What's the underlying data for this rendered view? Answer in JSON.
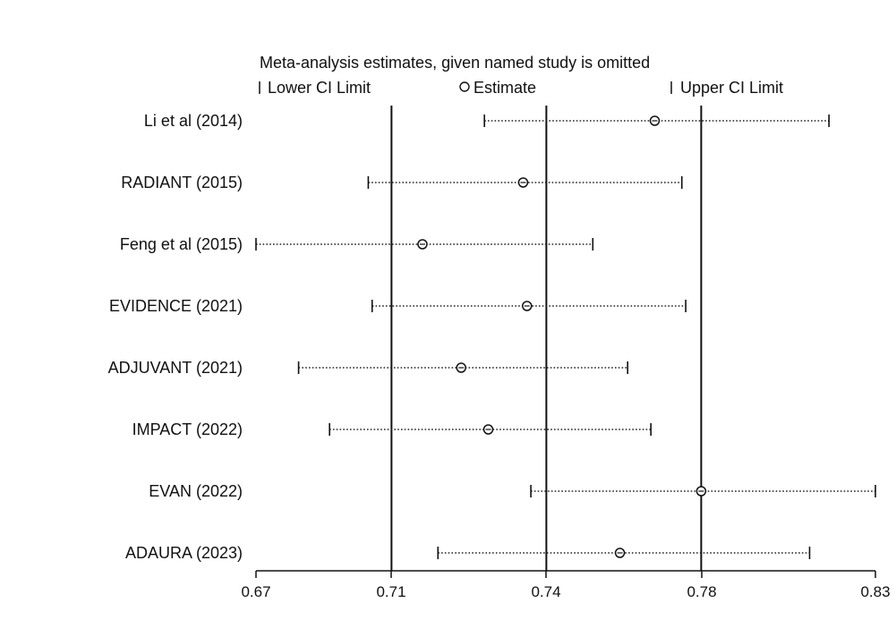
{
  "chart_data": {
    "type": "forest",
    "title": "Meta-analysis estimates, given named study is omitted",
    "legend": {
      "lower": "Lower CI Limit",
      "estimate": "Estimate",
      "upper": "Upper CI Limit",
      "placement": "top"
    },
    "xlim": [
      0.67,
      0.83
    ],
    "x_ticks": [
      0.67,
      0.71,
      0.74,
      0.78,
      0.83
    ],
    "x_tick_labels": [
      "0.67",
      "0.71",
      "0.74",
      "0.78",
      "0.83"
    ],
    "reference_lines": [
      0.705,
      0.745,
      0.785
    ],
    "studies": [
      {
        "name": "Li et al (2014)",
        "lower": 0.729,
        "estimate": 0.773,
        "upper": 0.818
      },
      {
        "name": "RADIANT (2015)",
        "lower": 0.699,
        "estimate": 0.739,
        "upper": 0.78
      },
      {
        "name": "Feng et al (2015)",
        "lower": 0.67,
        "estimate": 0.713,
        "upper": 0.757
      },
      {
        "name": "EVIDENCE (2021)",
        "lower": 0.7,
        "estimate": 0.74,
        "upper": 0.781
      },
      {
        "name": "ADJUVANT (2021)",
        "lower": 0.681,
        "estimate": 0.723,
        "upper": 0.766
      },
      {
        "name": "IMPACT (2022)",
        "lower": 0.689,
        "estimate": 0.73,
        "upper": 0.772
      },
      {
        "name": "EVAN (2022)",
        "lower": 0.741,
        "estimate": 0.785,
        "upper": 0.83
      },
      {
        "name": "ADAURA (2023)",
        "lower": 0.717,
        "estimate": 0.764,
        "upper": 0.813
      }
    ],
    "grid": false
  }
}
